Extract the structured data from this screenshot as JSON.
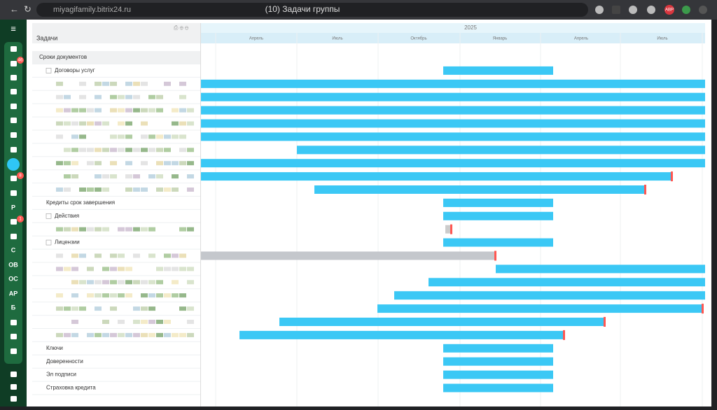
{
  "browser": {
    "url": "miyagifamily.bitrix24.ru",
    "tab_title": "(10) Задачи группы",
    "extension_badge": "ABP"
  },
  "sidebar": {
    "badges": [
      "46",
      "8",
      "1"
    ],
    "letters": [
      "Р",
      "С",
      "ОВ",
      "ОС",
      "АР",
      "Б"
    ]
  },
  "gantt": {
    "header": "Задачи",
    "year": "2025",
    "months": [
      "Апрель",
      "Июль",
      "Октябрь",
      "Январь",
      "Апрель",
      "Июль"
    ],
    "rows": [
      {
        "label": "Сроки документов"
      },
      {
        "label": "Договоры услуг"
      },
      {
        "label": "Кредиты срок завершения"
      },
      {
        "label": "Действия"
      },
      {
        "label": "Лицензии"
      },
      {
        "label": "Ключи"
      },
      {
        "label": "Доверенности"
      },
      {
        "label": "Эл подписи"
      },
      {
        "label": "Страховка кредита"
      }
    ]
  }
}
